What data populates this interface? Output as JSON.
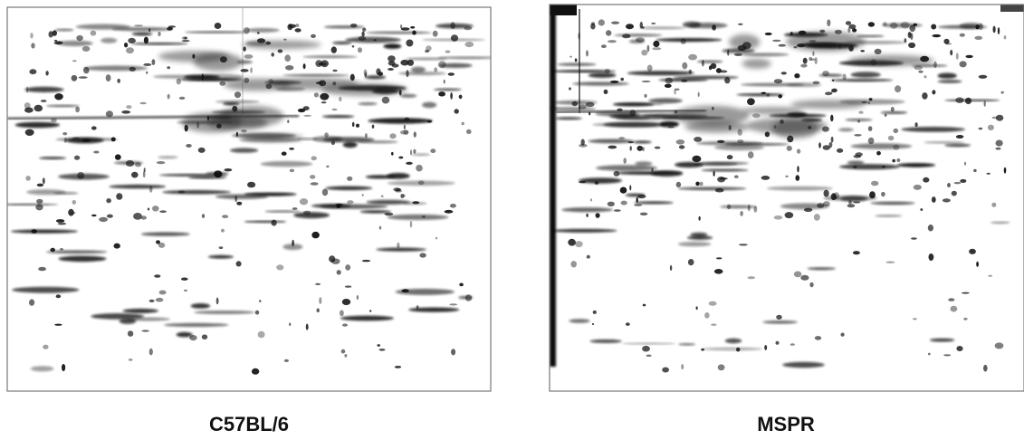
{
  "panels": [
    {
      "label": "C57BL/6"
    },
    {
      "label": "MSPR"
    }
  ]
}
